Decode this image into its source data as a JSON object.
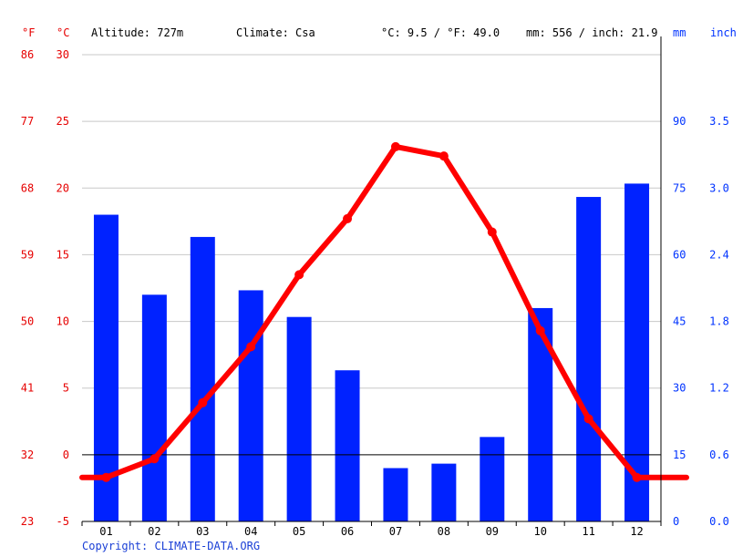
{
  "header": {
    "unit_f": "°F",
    "unit_c": "°C",
    "altitude": "Altitude: 727m",
    "climate": "Climate: Csa",
    "temp_avg": "°C: 9.5 / °F: 49.0",
    "precip_total": "mm: 556 / inch: 21.9",
    "unit_mm": "mm",
    "unit_inch": "inch"
  },
  "copyright": "Copyright: CLIMATE-DATA.ORG",
  "colors": {
    "temperature": "#ff0000",
    "precipitation": "#0022ff",
    "axis_left": "#e60000",
    "axis_right": "#0033ff"
  },
  "chart_data": {
    "type": "bar",
    "categories": [
      "01",
      "02",
      "03",
      "04",
      "05",
      "06",
      "07",
      "08",
      "09",
      "10",
      "11",
      "12"
    ],
    "series": [
      {
        "type": "bar",
        "axis": "right",
        "values": [
          69,
          51,
          64,
          52,
          46,
          34,
          12,
          13,
          19,
          48,
          73,
          76
        ]
      },
      {
        "type": "line",
        "axis": "left",
        "values": [
          -1.7,
          -0.3,
          3.9,
          8.1,
          13.5,
          17.7,
          23.1,
          22.4,
          16.7,
          9.3,
          2.7,
          -1.7
        ]
      }
    ],
    "ylim_left": [
      -5,
      30
    ],
    "yticks_c": [
      "-5",
      "0",
      "5",
      "10",
      "15",
      "20",
      "25",
      "30"
    ],
    "yticks_f": [
      "23",
      "32",
      "41",
      "50",
      "59",
      "68",
      "77",
      "86"
    ],
    "ylim_right": [
      0,
      105
    ],
    "yticks_mm": [
      "0",
      "15",
      "30",
      "45",
      "60",
      "75",
      "90"
    ],
    "yticks_inch": [
      "0.0",
      "0.6",
      "1.2",
      "1.8",
      "2.4",
      "3.0",
      "3.5"
    ],
    "grid": true
  }
}
